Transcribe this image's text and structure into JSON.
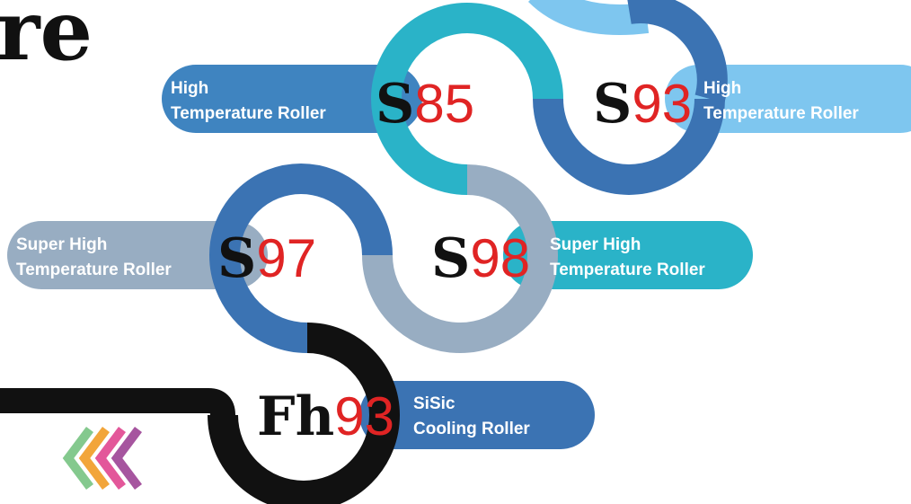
{
  "heading": {
    "fragment": "re"
  },
  "colors": {
    "steel_blue": "#3f84c0",
    "teal": "#2ab3c8",
    "light_blue": "#7ec6ef",
    "gray_blue": "#98adc2",
    "dark_blue": "#3b73b3",
    "black": "#111111",
    "code_red": "#e02424"
  },
  "products": [
    {
      "code_letter": "S",
      "code_number": "85",
      "line1": "High",
      "line2": "Temperature Roller",
      "pill_color": "#3f84c0"
    },
    {
      "code_letter": "S",
      "code_number": "93",
      "line1": "High",
      "line2": "Temperature Roller",
      "pill_color": "#7ec6ef"
    },
    {
      "code_letter": "S",
      "code_number": "97",
      "line1": "Super High",
      "line2": "Temperature Roller",
      "pill_color": "#98adc2"
    },
    {
      "code_letter": "S",
      "code_number": "98",
      "line1": "Super High",
      "line2": "Temperature Roller",
      "pill_color": "#2ab3c8"
    },
    {
      "code_letter": "Fh",
      "code_number": "93",
      "line1": "SiSic",
      "line2": "Cooling Roller",
      "pill_color": "#3b73b3"
    }
  ],
  "chevrons": {
    "colors": [
      "#84c98e",
      "#f2a53a",
      "#e3579a",
      "#a6559f"
    ]
  }
}
